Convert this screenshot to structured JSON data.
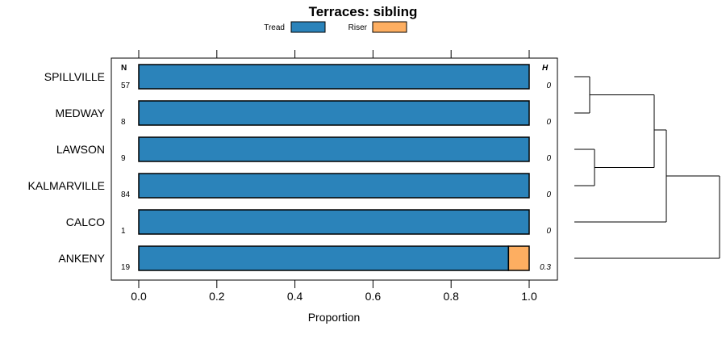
{
  "chart_data": {
    "type": "bar",
    "orientation": "horizontal",
    "stacked": true,
    "title": "Terraces: sibling",
    "xlabel": "Proportion",
    "ylabel": "",
    "xlim": [
      0,
      1
    ],
    "x_ticks": [
      "0.0",
      "0.2",
      "0.4",
      "0.6",
      "0.8",
      "1.0"
    ],
    "x_tick_values": [
      0,
      0.2,
      0.4,
      0.6,
      0.8,
      1.0
    ],
    "categories": [
      "SPILLVILLE",
      "MEDWAY",
      "LAWSON",
      "KALMARVILLE",
      "CALCO",
      "ANKENY"
    ],
    "series": [
      {
        "name": "Tread",
        "color": "#2b83ba",
        "values": [
          1.0,
          1.0,
          1.0,
          1.0,
          1.0,
          0.947
        ]
      },
      {
        "name": "Riser",
        "color": "#fdae61",
        "values": [
          0.0,
          0.0,
          0.0,
          0.0,
          0.0,
          0.053
        ]
      }
    ],
    "n_header": "N",
    "h_header": "H",
    "n_values": [
      "57",
      "8",
      "9",
      "84",
      "1",
      "19"
    ],
    "h_values": [
      "0",
      "0",
      "0",
      "0",
      "0",
      "0.3"
    ],
    "legend_position": "top",
    "dendrogram": "right"
  }
}
